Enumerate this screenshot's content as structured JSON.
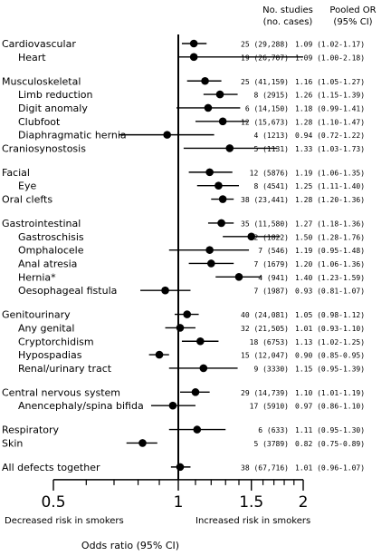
{
  "header": {
    "studies_label": "No. studies",
    "cases_label": "(no. cases)",
    "or_label": "Pooled OR",
    "ci_label": "(95% CI)"
  },
  "chart_data": {
    "type": "forest",
    "xlabel": "Odds ratio (95% CI)",
    "x_scale": "log",
    "xlim": [
      0.5,
      2
    ],
    "ticks": [
      0.5,
      1,
      1.5,
      2
    ],
    "tick_labels": [
      "0.5",
      "1",
      "1.5",
      "2"
    ],
    "reference_line": 1,
    "left_annotation": "Decreased risk in smokers",
    "right_annotation": "Increased risk in smokers",
    "rows": [
      {
        "label": "Cardiovascular",
        "indent": 0,
        "or": 1.09,
        "lo": 1.02,
        "hi": 1.17,
        "summary": "25 (29,288)",
        "ci_text": "1.09 (1.02-1.17)"
      },
      {
        "label": "Heart",
        "indent": 1,
        "or": 1.09,
        "lo": 1.0,
        "hi": 2.18,
        "summary": "19 (26,707)",
        "ci_text": "1.09 (1.00-2.18)"
      },
      {
        "gap": true
      },
      {
        "label": "Musculoskeletal",
        "indent": 0,
        "or": 1.16,
        "lo": 1.05,
        "hi": 1.27,
        "summary": "25 (41,159)",
        "ci_text": "1.16 (1.05-1.27)"
      },
      {
        "label": "Limb reduction",
        "indent": 1,
        "or": 1.26,
        "lo": 1.15,
        "hi": 1.39,
        "summary": "8 (2915)",
        "ci_text": "1.26 (1.15-1.39)"
      },
      {
        "label": "Digit anomaly",
        "indent": 1,
        "or": 1.18,
        "lo": 0.99,
        "hi": 1.41,
        "summary": "6 (14,150)",
        "ci_text": "1.18 (0.99-1.41)"
      },
      {
        "label": "Clubfoot",
        "indent": 1,
        "or": 1.28,
        "lo": 1.1,
        "hi": 1.47,
        "summary": "12 (15,673)",
        "ci_text": "1.28 (1.10-1.47)"
      },
      {
        "label": "Diaphragmatic hernia",
        "indent": 1,
        "or": 0.94,
        "lo": 0.72,
        "hi": 1.22,
        "summary": "4 (1213)",
        "ci_text": "0.94 (0.72-1.22)"
      },
      {
        "label": "Craniosynostosis",
        "indent": 0,
        "or": 1.33,
        "lo": 1.03,
        "hi": 1.73,
        "summary": "5 (1131)",
        "ci_text": "1.33 (1.03-1.73)"
      },
      {
        "gap": true
      },
      {
        "label": "Facial",
        "indent": 0,
        "or": 1.19,
        "lo": 1.06,
        "hi": 1.35,
        "summary": "12 (5876)",
        "ci_text": "1.19 (1.06-1.35)"
      },
      {
        "label": "Eye",
        "indent": 1,
        "or": 1.25,
        "lo": 1.11,
        "hi": 1.4,
        "summary": "8 (4541)",
        "ci_text": "1.25 (1.11-1.40)"
      },
      {
        "label": "Oral clefts",
        "indent": 0,
        "or": 1.28,
        "lo": 1.2,
        "hi": 1.36,
        "summary": "38 (23,441)",
        "ci_text": "1.28 (1.20-1.36)"
      },
      {
        "gap": true
      },
      {
        "label": "Gastrointestinal",
        "indent": 0,
        "or": 1.27,
        "lo": 1.18,
        "hi": 1.36,
        "summary": "35 (11,580)",
        "ci_text": "1.27 (1.18-1.36)"
      },
      {
        "label": "Gastroschisis",
        "indent": 1,
        "or": 1.5,
        "lo": 1.28,
        "hi": 1.76,
        "summary": "12 (1822)",
        "ci_text": "1.50 (1.28-1.76)"
      },
      {
        "label": "Omphalocele",
        "indent": 1,
        "or": 1.19,
        "lo": 0.95,
        "hi": 1.48,
        "summary": "7 (546)",
        "ci_text": "1.19 (0.95-1.48)"
      },
      {
        "label": "Anal atresia",
        "indent": 1,
        "or": 1.2,
        "lo": 1.06,
        "hi": 1.36,
        "summary": "7 (1679)",
        "ci_text": "1.20 (1.06-1.36)"
      },
      {
        "label": "Hernia*",
        "indent": 1,
        "or": 1.4,
        "lo": 1.23,
        "hi": 1.59,
        "summary": "4 (941)",
        "ci_text": "1.40 (1.23-1.59)"
      },
      {
        "label": "Oesophageal fistula",
        "indent": 1,
        "or": 0.93,
        "lo": 0.81,
        "hi": 1.07,
        "summary": "7 (1987)",
        "ci_text": "0.93 (0.81-1.07)"
      },
      {
        "gap": true
      },
      {
        "label": "Genitourinary",
        "indent": 0,
        "or": 1.05,
        "lo": 0.98,
        "hi": 1.12,
        "summary": "40 (24,081)",
        "ci_text": "1.05 (0.98-1.12)"
      },
      {
        "label": "Any genital",
        "indent": 1,
        "or": 1.01,
        "lo": 0.93,
        "hi": 1.1,
        "summary": "32 (21,505)",
        "ci_text": "1.01 (0.93-1.10)"
      },
      {
        "label": "Cryptorchidism",
        "indent": 1,
        "or": 1.13,
        "lo": 1.02,
        "hi": 1.25,
        "summary": "18 (6753)",
        "ci_text": "1.13 (1.02-1.25)"
      },
      {
        "label": "Hypospadias",
        "indent": 1,
        "or": 0.9,
        "lo": 0.85,
        "hi": 0.95,
        "summary": "15 (12,047)",
        "ci_text": "0.90 (0.85-0.95)"
      },
      {
        "label": "Renal/urinary tract",
        "indent": 1,
        "or": 1.15,
        "lo": 0.95,
        "hi": 1.39,
        "summary": "9 (3330)",
        "ci_text": "1.15 (0.95-1.39)"
      },
      {
        "gap": true
      },
      {
        "label": "Central nervous system",
        "indent": 0,
        "or": 1.1,
        "lo": 1.01,
        "hi": 1.19,
        "summary": "29 (14,739)",
        "ci_text": "1.10 (1.01-1.19)"
      },
      {
        "label": "Anencephaly/spina bifida",
        "indent": 1,
        "or": 0.97,
        "lo": 0.86,
        "hi": 1.1,
        "summary": "17 (5910)",
        "ci_text": "0.97 (0.86-1.10)"
      },
      {
        "gap": true
      },
      {
        "label": "Respiratory",
        "indent": 0,
        "or": 1.11,
        "lo": 0.95,
        "hi": 1.3,
        "summary": "6 (633)",
        "ci_text": "1.11 (0.95-1.30)"
      },
      {
        "label": "Skin",
        "indent": 0,
        "or": 0.82,
        "lo": 0.75,
        "hi": 0.89,
        "summary": "5 (3789)",
        "ci_text": "0.82 (0.75-0.89)"
      },
      {
        "gap": true
      },
      {
        "label": "All defects together",
        "indent": 0,
        "or": 1.01,
        "lo": 0.96,
        "hi": 1.07,
        "summary": "38 (67,716)",
        "ci_text": "1.01 (0.96-1.07)"
      }
    ]
  }
}
